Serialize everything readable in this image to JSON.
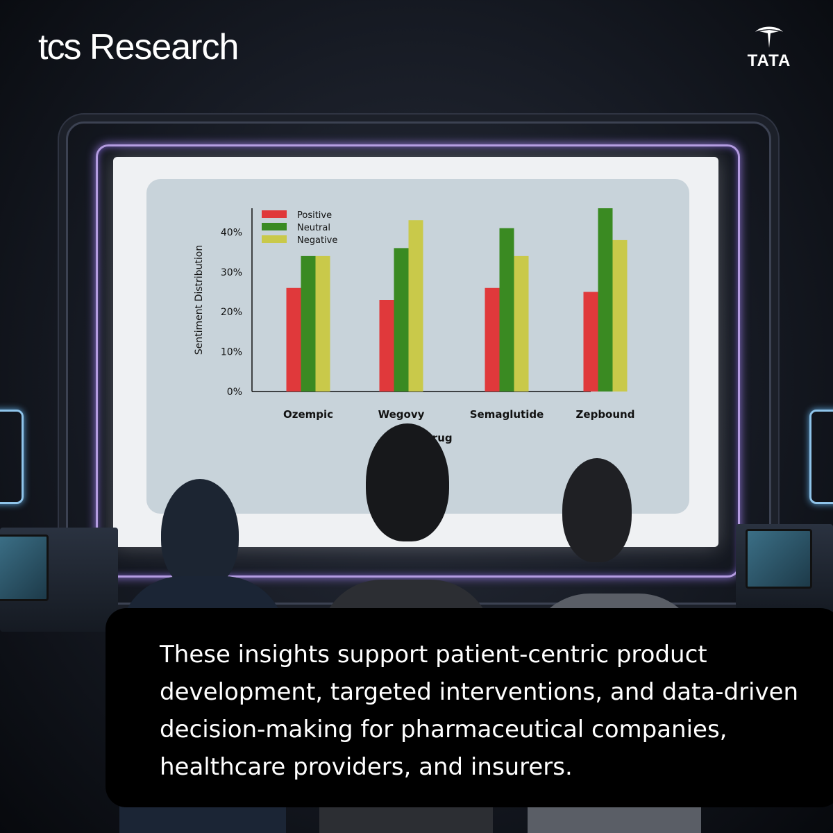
{
  "brand": {
    "tcs": "tcs",
    "research": "Research",
    "tata": "TATA"
  },
  "caption": "These insights support patient-centric product development, targeted interventions, and data-driven decision-making for pharmaceutical companies, healthcare providers, and insurers.",
  "chart_data": {
    "type": "bar",
    "categories": [
      "Ozempic",
      "Wegovy",
      "Semaglutide",
      "Zepbound"
    ],
    "series": [
      {
        "name": "Positive",
        "color": "#e0393b",
        "values": [
          26,
          23,
          26,
          25
        ]
      },
      {
        "name": "Neutral",
        "color": "#3a8a22",
        "values": [
          34,
          36,
          41,
          46
        ]
      },
      {
        "name": "Negative",
        "color": "#c9c94a",
        "values": [
          34,
          43,
          34,
          38
        ]
      }
    ],
    "xlabel": "Drug",
    "ylabel": "Sentiment Distribution",
    "ylim": [
      0,
      46
    ],
    "yticks": [
      "0%",
      "10%",
      "20%",
      "30%",
      "40%"
    ],
    "ytick_values": [
      0,
      10,
      20,
      30,
      40
    ],
    "legend": "top-left",
    "grid": false
  }
}
